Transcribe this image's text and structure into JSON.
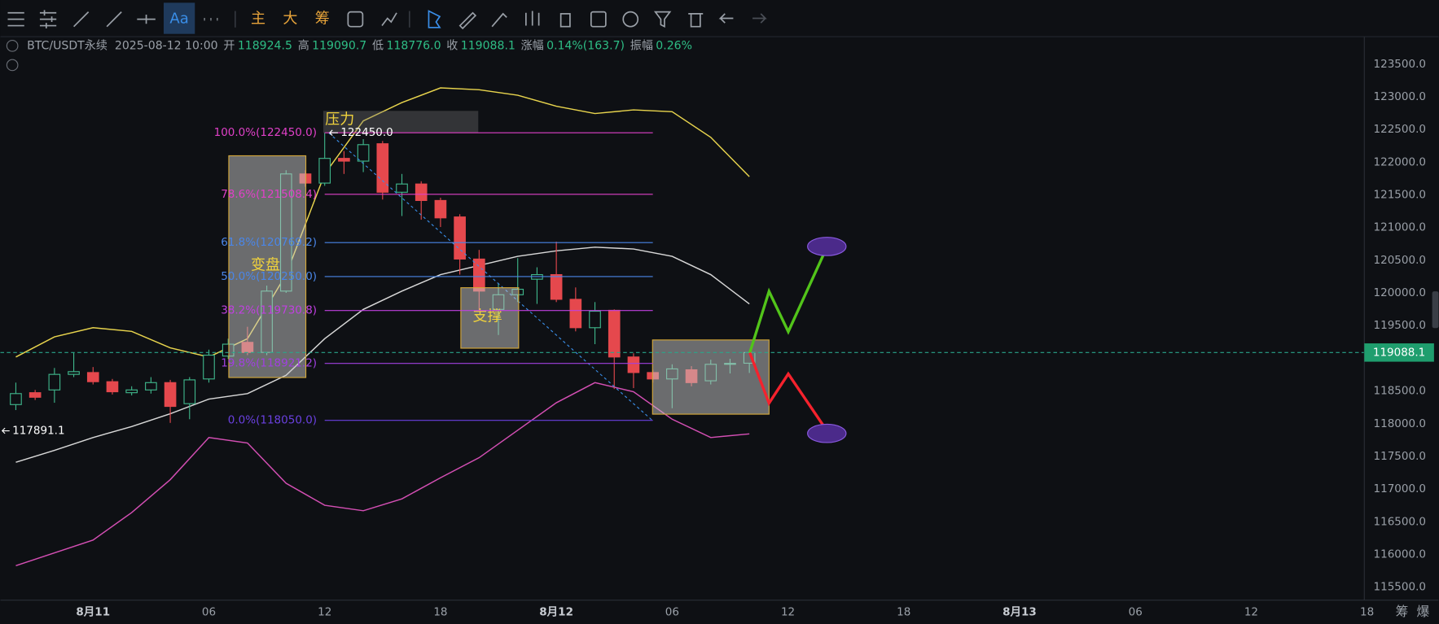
{
  "toolbar": [
    "Aa",
    "主",
    "大",
    "筹"
  ],
  "header": {
    "symbol": "BTC/USDT永续",
    "time": "2025-08-12 10:00",
    "fields": [
      {
        "label": "开",
        "value": "118924.5"
      },
      {
        "label": "高",
        "value": "119090.7"
      },
      {
        "label": "低",
        "value": "118776.0"
      },
      {
        "label": "收",
        "value": "119088.1"
      },
      {
        "label": "涨幅",
        "value": "0.14%(163.7)"
      },
      {
        "label": "振幅",
        "value": "0.26%"
      }
    ]
  },
  "footer": [
    "筹",
    "爆"
  ],
  "chart_data": {
    "type": "candlestick",
    "x": [
      -4,
      -3,
      -2,
      -1,
      0,
      1,
      2,
      3,
      4,
      5,
      6,
      7,
      8,
      9,
      10,
      11,
      12,
      13,
      14,
      15,
      16,
      17,
      18,
      19,
      20,
      21,
      22,
      23,
      24,
      25,
      26,
      27,
      28,
      29,
      30,
      31,
      32,
      33,
      34
    ],
    "open": [
      118292,
      118474,
      118516,
      118754,
      118782,
      118642,
      118474,
      118516,
      118628,
      118306,
      118684,
      119034,
      119244,
      119090,
      120028,
      121820,
      121680,
      122058,
      122016,
      122282,
      121540,
      121666,
      121414,
      121162,
      120518,
      119748,
      119972,
      120210,
      120280,
      119902,
      119468,
      119734,
      119020,
      118782,
      118684,
      118824,
      118656,
      118908,
      118924.5
    ],
    "close": [
      118460,
      118404,
      118754,
      118796,
      118642,
      118488,
      118516,
      118628,
      118264,
      118670,
      119048,
      119216,
      119090,
      120028,
      121820,
      121680,
      122058,
      122016,
      122268,
      121540,
      121666,
      121414,
      121148,
      120518,
      120028,
      119972,
      120056,
      120280,
      119902,
      119468,
      119720,
      119020,
      118782,
      118684,
      118838,
      118628,
      118908,
      118922,
      119088.1
    ],
    "high": [
      118628,
      118516,
      118852,
      119090,
      118866,
      118684,
      118572,
      118712,
      118670,
      118712,
      119132,
      119300,
      119482,
      120112,
      121876,
      121876,
      122450,
      122170,
      122352,
      122324,
      121820,
      121708,
      121456,
      121204,
      120658,
      120140,
      120532,
      120392,
      120784,
      120084,
      119860,
      119748,
      119076,
      118824,
      118908,
      118880,
      118978,
      118992,
      119090.7
    ],
    "low": [
      118208,
      118362,
      118320,
      118712,
      118600,
      118446,
      118432,
      118460,
      118012,
      118068,
      118628,
      118992,
      119048,
      119048,
      120000,
      121624,
      121638,
      121820,
      121848,
      121428,
      121176,
      121120,
      121008,
      120280,
      119720,
      119356,
      119860,
      119832,
      119860,
      119412,
      119216,
      118530,
      118544,
      118628,
      118236,
      118572,
      118600,
      118768,
      118776.0
    ],
    "up_color": "#3fb68b",
    "down_color": "#e5484d",
    "band_x": [
      -4,
      -2,
      0,
      2,
      4,
      6,
      8,
      10,
      12,
      14,
      16,
      18,
      20,
      22,
      24,
      26,
      28,
      30,
      32,
      34
    ],
    "bands": [
      {
        "color": "#e8d44d",
        "values": [
          119020,
          119328,
          119468,
          119412,
          119160,
          119020,
          119300,
          120280,
          121820,
          122632,
          122912,
          123136,
          123108,
          123024,
          122856,
          122744,
          122800,
          122772,
          122380,
          121778
        ]
      },
      {
        "color": "#d8d8d8",
        "values": [
          117410,
          117592,
          117788,
          117956,
          118152,
          118376,
          118460,
          118740,
          119300,
          119748,
          120028,
          120280,
          120420,
          120560,
          120644,
          120700,
          120672,
          120560,
          120280,
          119832
        ]
      },
      {
        "color": "#d44fb4",
        "values": [
          115828,
          116024,
          116220,
          116640,
          117144,
          117788,
          117704,
          117088,
          116752,
          116668,
          116850,
          117172,
          117480,
          117900,
          118320,
          118628,
          118488,
          118068,
          117788,
          117844
        ]
      }
    ],
    "fib_levels": [
      {
        "value": 122450.0,
        "label": "100.0%(122450.0)",
        "color": "#e040c8"
      },
      {
        "value": 121508.4,
        "label": "78.6%(121508.4)",
        "color": "#e040c8"
      },
      {
        "value": 120769.2,
        "label": "61.8%(120769.2)",
        "color": "#4a86e8"
      },
      {
        "value": 120250.0,
        "label": "50.0%(120250.0)",
        "color": "#4a86e8"
      },
      {
        "value": 119730.8,
        "label": "38.2%(119730.8)",
        "color": "#c040e0"
      },
      {
        "value": 118921.2,
        "label": "19.8%(118921.2)",
        "color": "#a040e0"
      },
      {
        "value": 118050.0,
        "label": "0.0%(118050.0)",
        "color": "#6a40e0"
      }
    ],
    "annotations": [
      "压力",
      "变盘",
      "支撑"
    ],
    "high_marker": {
      "value": 122450,
      "label": "122450.0"
    },
    "low_marker": 117891.1,
    "last_price": 119088.1,
    "xlim": [
      -4.8,
      66
    ],
    "ylim": [
      115300,
      123920
    ],
    "xticks": [
      {
        "value": 0,
        "label": "8月11"
      },
      {
        "value": 6,
        "label": "06"
      },
      {
        "value": 12,
        "label": "12"
      },
      {
        "value": 18,
        "label": "18"
      },
      {
        "value": 24,
        "label": "8月12"
      },
      {
        "value": 30,
        "label": "06"
      },
      {
        "value": 36,
        "label": "12"
      },
      {
        "value": 42,
        "label": "18"
      },
      {
        "value": 48,
        "label": "8月13"
      },
      {
        "value": 54,
        "label": "06"
      },
      {
        "value": 60,
        "label": "12"
      },
      {
        "value": 66,
        "label": "18"
      }
    ],
    "yticks": [
      {
        "value": 115500,
        "label": "115500.0"
      },
      {
        "value": 116000,
        "label": "116000.0"
      },
      {
        "value": 116500,
        "label": "116500.0"
      },
      {
        "value": 117000,
        "label": "117000.0"
      },
      {
        "value": 117500,
        "label": "117500.0"
      },
      {
        "value": 118000,
        "label": "118000.0"
      },
      {
        "value": 118500,
        "label": "118500.0"
      },
      {
        "value": 119000,
        "label": "119000.0"
      },
      {
        "value": 119500,
        "label": "119500.0"
      },
      {
        "value": 120000,
        "label": "120000.0"
      },
      {
        "value": 120500,
        "label": "120500.0"
      },
      {
        "value": 121000,
        "label": "121000.0"
      },
      {
        "value": 121500,
        "label": "121500.0"
      },
      {
        "value": 122000,
        "label": "122000.0"
      },
      {
        "value": 122500,
        "label": "122500.0"
      },
      {
        "value": 123000,
        "label": "123000.0"
      },
      {
        "value": 123500,
        "label": "123500.0"
      }
    ],
    "grid": true
  }
}
